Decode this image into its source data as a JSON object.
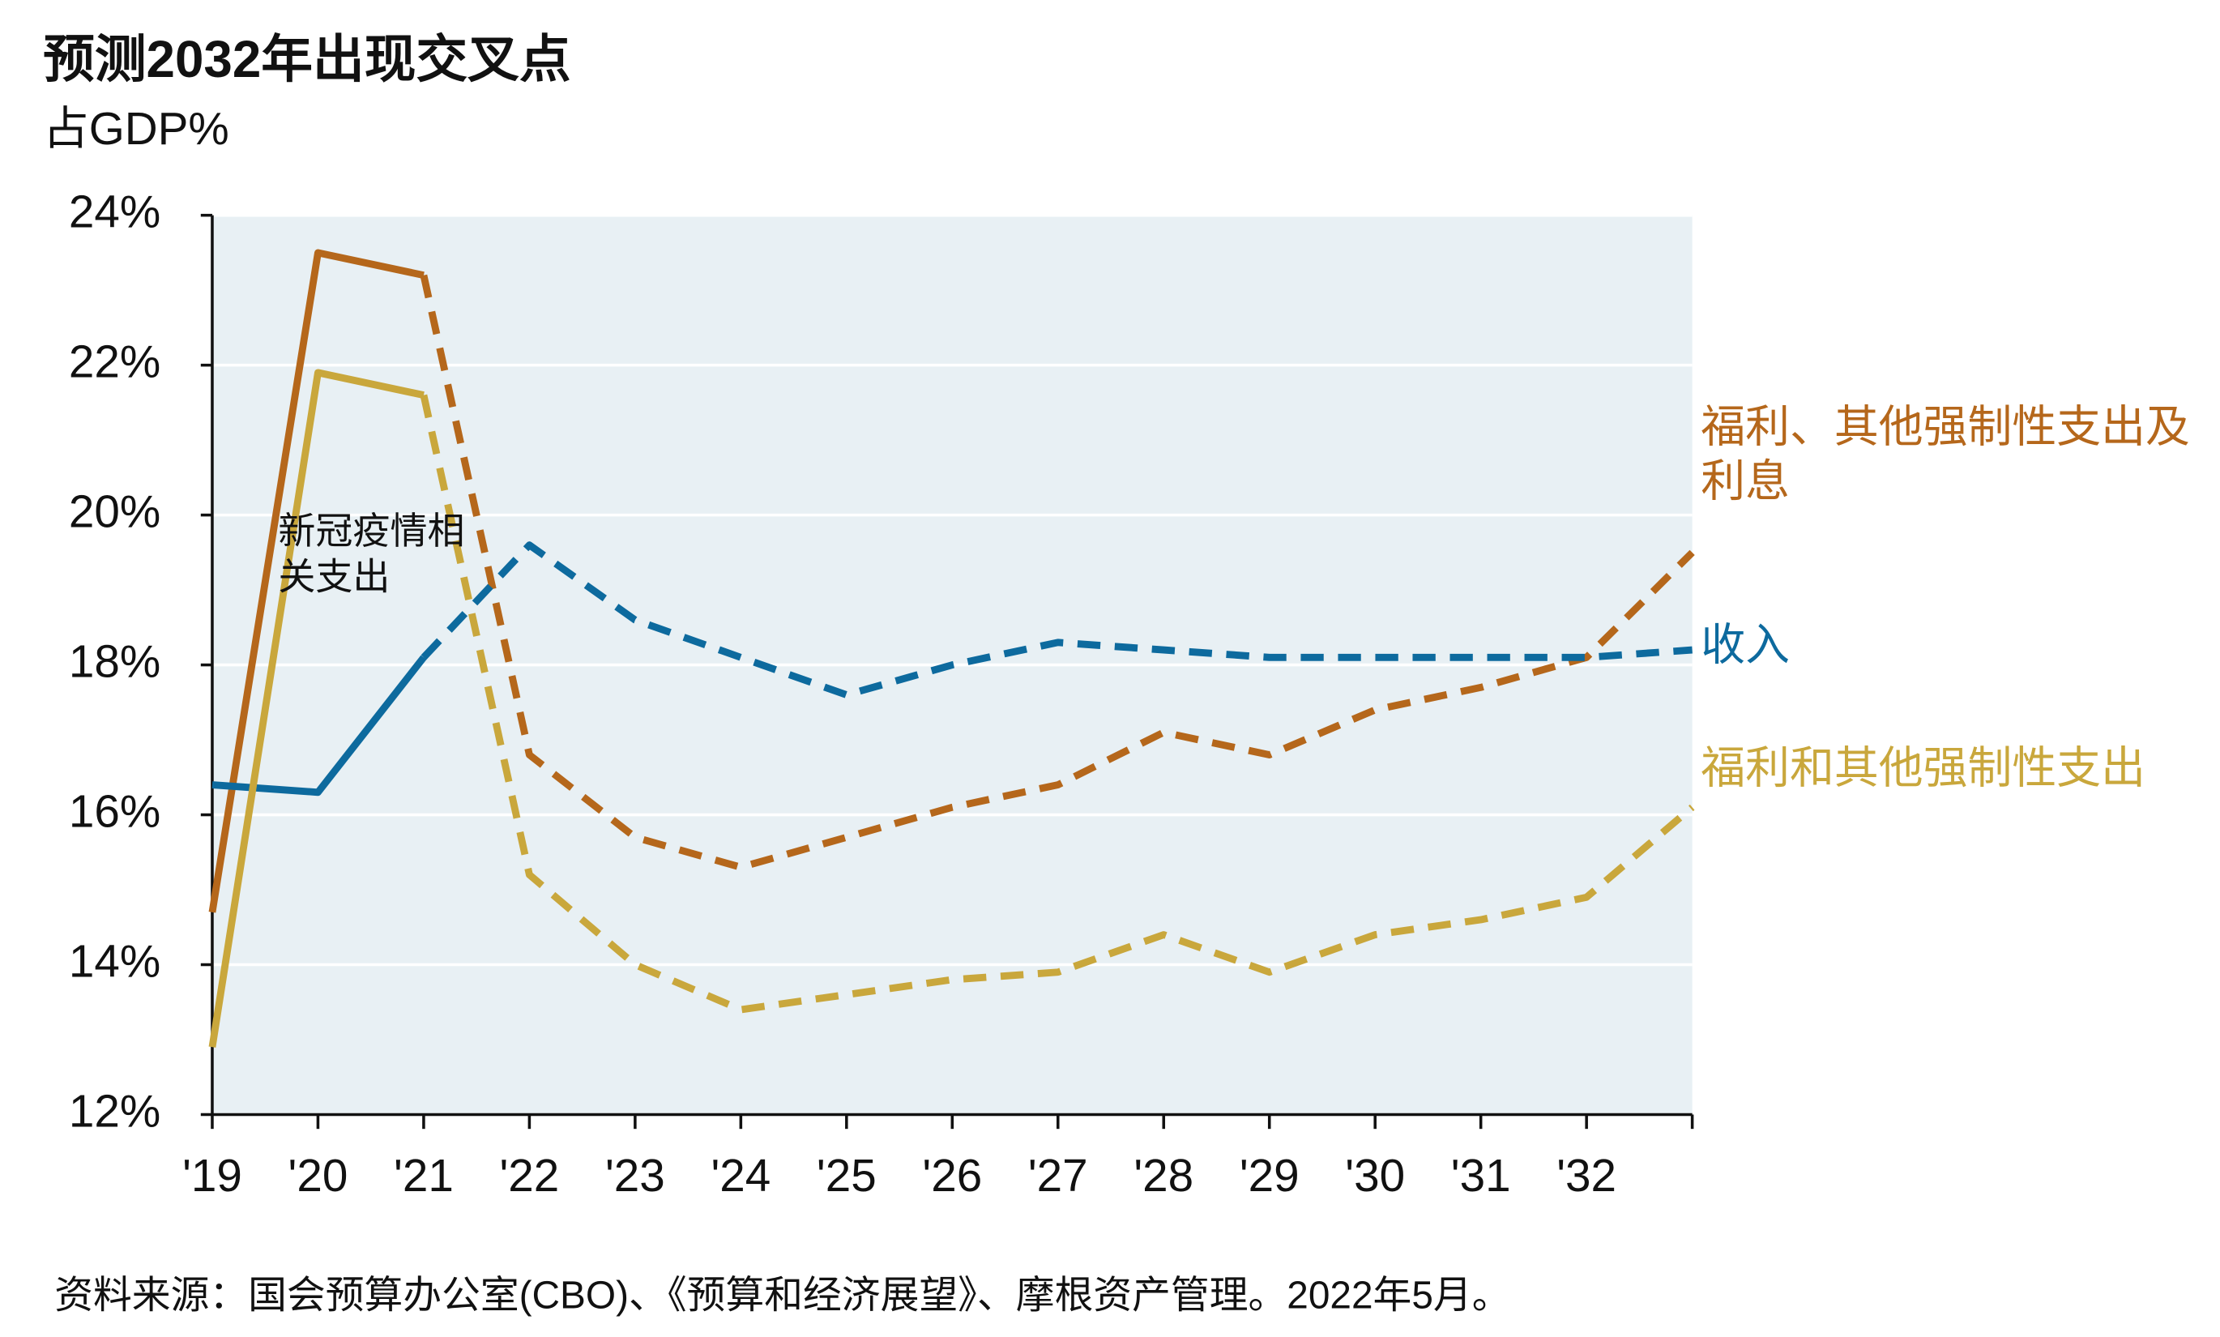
{
  "chart_data": {
    "type": "line",
    "title": "预测2032年出现交叉点",
    "subtitle": "占GDP%",
    "categories": [
      "'19",
      "'20",
      "'21",
      "'22",
      "'23",
      "'24",
      "'25",
      "'26",
      "'27",
      "'28",
      "'29",
      "'30",
      "'31",
      "'32",
      null
    ],
    "series": [
      {
        "name": "福利、其他强制性支出及利息",
        "color": "#b5671b",
        "values": [
          14.7,
          23.5,
          23.2,
          16.8,
          15.7,
          15.3,
          15.7,
          16.1,
          16.4,
          17.1,
          16.8,
          17.4,
          17.7,
          18.1,
          19.5
        ]
      },
      {
        "name": "收入",
        "color": "#0d6a9e",
        "values": [
          16.4,
          16.3,
          18.1,
          19.6,
          18.6,
          18.1,
          17.6,
          18.0,
          18.3,
          18.2,
          18.1,
          18.1,
          18.1,
          18.1,
          18.2
        ]
      },
      {
        "name": "福利和其他强制性支出",
        "color": "#c9a73c",
        "values": [
          12.9,
          21.9,
          21.6,
          15.2,
          14.0,
          13.4,
          13.6,
          13.8,
          13.9,
          14.4,
          13.9,
          14.4,
          14.6,
          14.9,
          16.1
        ]
      }
    ],
    "dash_from": 2,
    "ylim": [
      12,
      24
    ],
    "yticks": [
      {
        "value": 12,
        "label": "12%"
      },
      {
        "value": 14,
        "label": "14%"
      },
      {
        "value": 16,
        "label": "16%"
      },
      {
        "value": 18,
        "label": "18%"
      },
      {
        "value": 20,
        "label": "20%"
      },
      {
        "value": 22,
        "label": "22%"
      },
      {
        "value": 24,
        "label": "24%"
      }
    ],
    "grid": true,
    "annotation": "新冠疫情相关支出",
    "source": "资料来源：国会预算办公室(CBO)、《预算和经济展望》、摩根资产管理。2022年5月。"
  }
}
